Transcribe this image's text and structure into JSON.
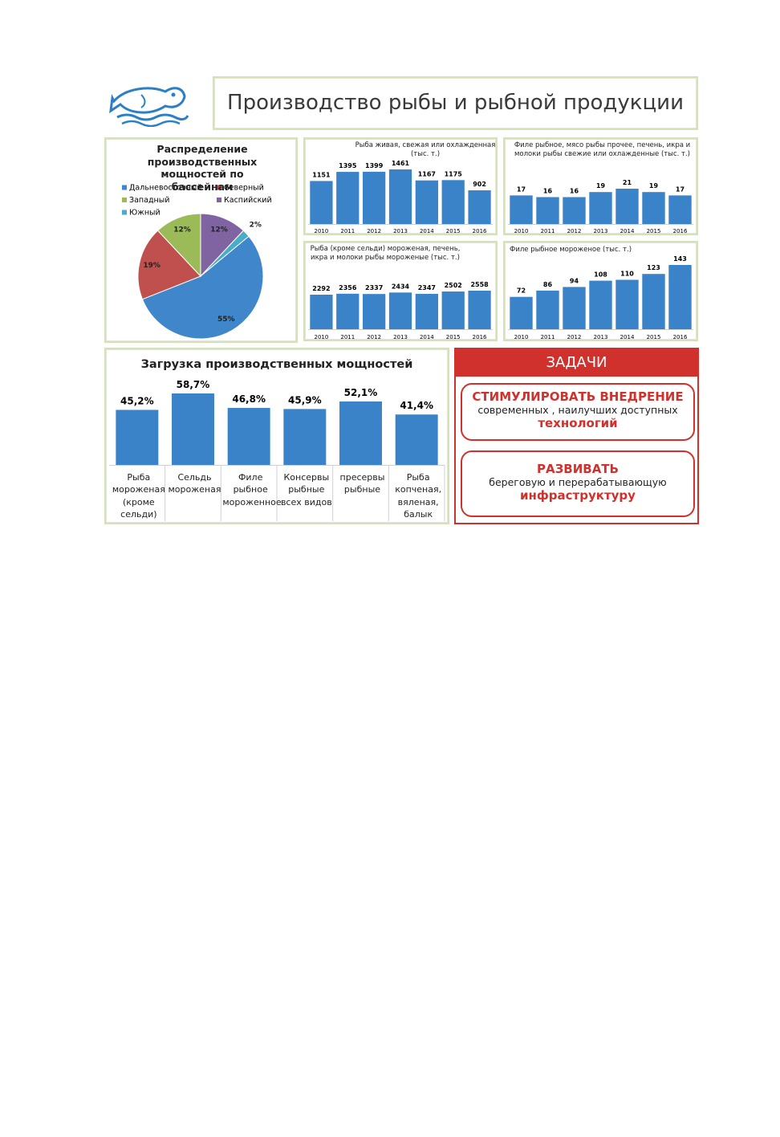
{
  "header": {
    "title": "Производство рыбы и рыбной продукции"
  },
  "chart_data": [
    {
      "type": "pie",
      "title": "Распределение производственных мощностей по бассейнам",
      "categories": [
        "Дальневосточный",
        "Северный",
        "Западный",
        "Каспийский",
        "Южный"
      ],
      "values": [
        55,
        19,
        12,
        12,
        2
      ],
      "value_labels": [
        "55%",
        "19%",
        "12%",
        "12%",
        "2%"
      ],
      "colors": [
        "#3f86cb",
        "#c0504d",
        "#9bbb59",
        "#8064a2",
        "#4bacc6"
      ]
    },
    {
      "type": "bar",
      "title": "Рыба живая, свежая или охлажденная (тыс. т.)",
      "categories": [
        "2010",
        "2011",
        "2012",
        "2013",
        "2014",
        "2015",
        "2016"
      ],
      "values": [
        1151,
        1395,
        1399,
        1461,
        1167,
        1175,
        902
      ],
      "color": "#3b83c8"
    },
    {
      "type": "bar",
      "title": "Филе рыбное, мясо рыбы прочее, печень, икра и молоки рыбы свежие или охлажденные (тыс. т.)",
      "categories": [
        "2010",
        "2011",
        "2012",
        "2013",
        "2014",
        "2015",
        "2016"
      ],
      "values": [
        17,
        16,
        16,
        19,
        21,
        19,
        17
      ],
      "color": "#3b83c8"
    },
    {
      "type": "bar",
      "title": "Рыба (кроме сельди) мороженая, печень, икра и молоки рыбы мороженые (тыс. т.)",
      "categories": [
        "2010",
        "2011",
        "2012",
        "2013",
        "2014",
        "2015",
        "2016"
      ],
      "values": [
        2292,
        2356,
        2337,
        2434,
        2347,
        2502,
        2558
      ],
      "color": "#3b83c8"
    },
    {
      "type": "bar",
      "title": "Филе рыбное мороженое (тыс. т.)",
      "categories": [
        "2010",
        "2011",
        "2012",
        "2013",
        "2014",
        "2015",
        "2016"
      ],
      "values": [
        72,
        86,
        94,
        108,
        110,
        123,
        143
      ],
      "color": "#3b83c8"
    },
    {
      "type": "bar",
      "title": "Загрузка производственных мощностей",
      "categories": [
        "Рыба мороженая (кроме сельди)",
        "Сельдь мороженая",
        "Филе рыбное мороженное",
        "Консервы рыбные всех видов",
        "пресервы рыбные",
        "Рыба копченая, вяленая, балык"
      ],
      "values": [
        45.2,
        58.7,
        46.8,
        45.9,
        52.1,
        41.4
      ],
      "value_labels": [
        "45,2%",
        "58,7%",
        "46,8%",
        "45,9%",
        "52,1%",
        "41,4%"
      ],
      "color": "#3b83c8"
    }
  ],
  "tasks": {
    "title": "ЗАДАЧИ",
    "items": [
      {
        "heading": "СТИМУЛИРОВАТЬ ВНЕДРЕНИЕ",
        "text": "современных , наилучших доступных",
        "emphasis": "технологий"
      },
      {
        "heading": "РАЗВИВАТЬ",
        "text": "береговую и перерабатывающую",
        "emphasis": "инфраструктуру"
      }
    ]
  }
}
